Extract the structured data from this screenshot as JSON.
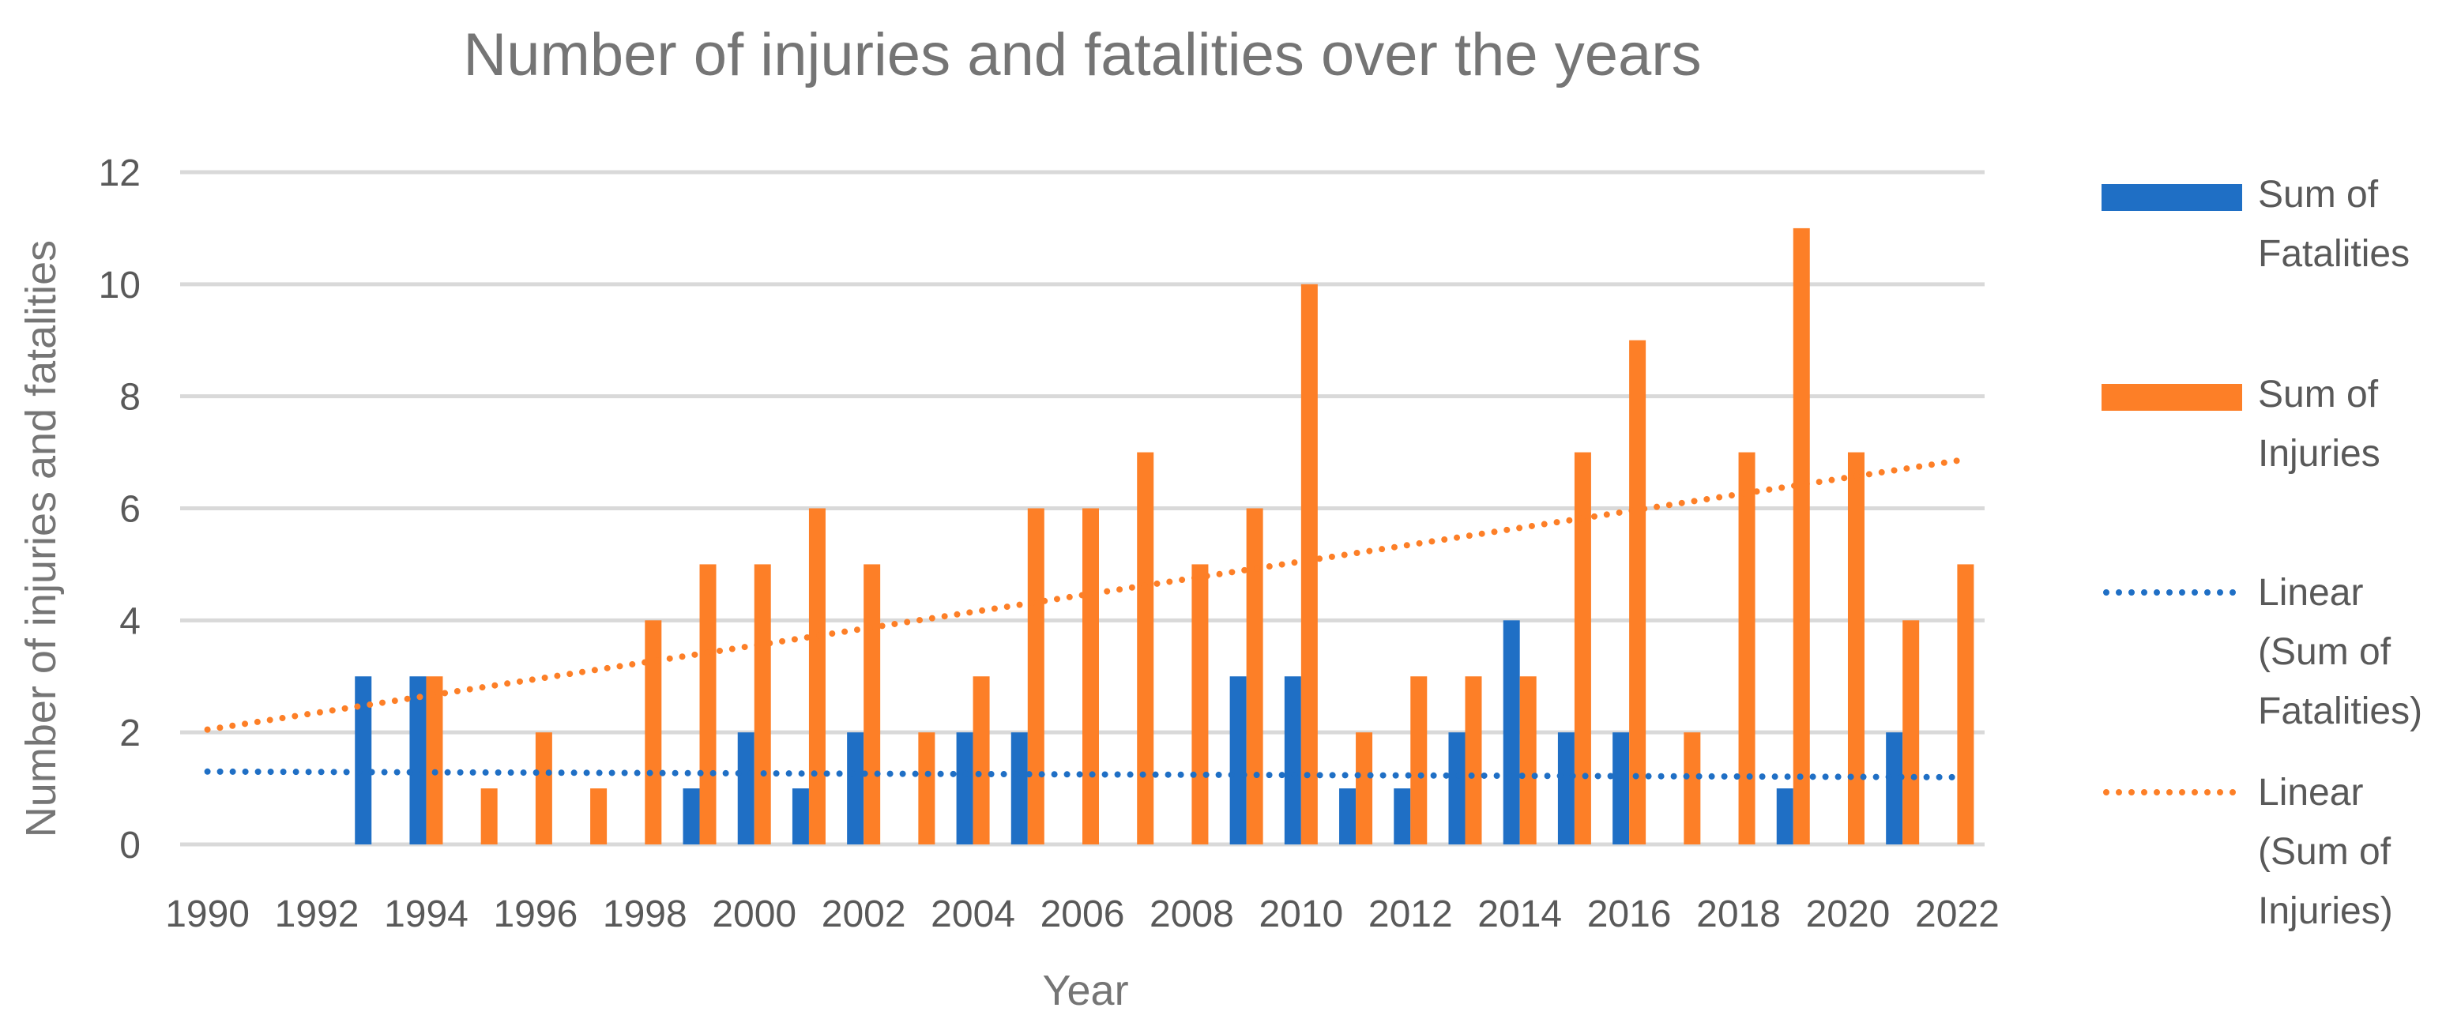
{
  "chart_data": {
    "type": "bar",
    "title": "Number of injuries and fatalities over the years",
    "xlabel": "Year",
    "ylabel": "Number of injuries and fatalities",
    "ylim": [
      0,
      12
    ],
    "yticks": [
      "0",
      "2",
      "4",
      "6",
      "8",
      "10",
      "12"
    ],
    "grid": true,
    "legend_position": "right",
    "categories": [
      "1990",
      "1991",
      "1992",
      "1993",
      "1994",
      "1995",
      "1996",
      "1997",
      "1998",
      "1999",
      "2000",
      "2001",
      "2002",
      "2003",
      "2004",
      "2005",
      "2006",
      "2007",
      "2008",
      "2009",
      "2010",
      "2011",
      "2012",
      "2013",
      "2014",
      "2015",
      "2016",
      "2017",
      "2018",
      "2019",
      "2020",
      "2021",
      "2022"
    ],
    "x_tick_labels": [
      "1990",
      "1992",
      "1994",
      "1996",
      "1998",
      "2000",
      "2002",
      "2004",
      "2006",
      "2008",
      "2010",
      "2012",
      "2014",
      "2016",
      "2018",
      "2020",
      "2022"
    ],
    "series": [
      {
        "name": "Sum of Fatalities",
        "legend_lines": [
          "Sum of",
          "Fatalities"
        ],
        "color": "#1f6fc5",
        "values": [
          0,
          0,
          0,
          3,
          3,
          0,
          0,
          0,
          0,
          1,
          2,
          1,
          2,
          0,
          2,
          2,
          0,
          0,
          0,
          3,
          3,
          1,
          1,
          2,
          4,
          2,
          2,
          0,
          0,
          1,
          0,
          2,
          0
        ]
      },
      {
        "name": "Sum of Injuries",
        "legend_lines": [
          "Sum of",
          "Injuries"
        ],
        "color": "#fd7f27",
        "values": [
          0,
          0,
          0,
          0,
          3,
          1,
          2,
          1,
          4,
          5,
          5,
          6,
          5,
          2,
          3,
          6,
          6,
          7,
          5,
          6,
          10,
          2,
          3,
          3,
          3,
          7,
          9,
          2,
          7,
          11,
          7,
          4,
          5
        ]
      }
    ],
    "trendlines": [
      {
        "name": "Linear (Sum of Fatalities)",
        "legend_lines": [
          "Linear",
          "(Sum of",
          "Fatalities)"
        ],
        "color": "#1f6fc5",
        "start": 1.3,
        "end": 1.2
      },
      {
        "name": "Linear (Sum of Injuries)",
        "legend_lines": [
          "Linear",
          "(Sum of",
          "Injuries)"
        ],
        "color": "#fd7f27",
        "start": 2.05,
        "end": 6.85
      }
    ]
  }
}
